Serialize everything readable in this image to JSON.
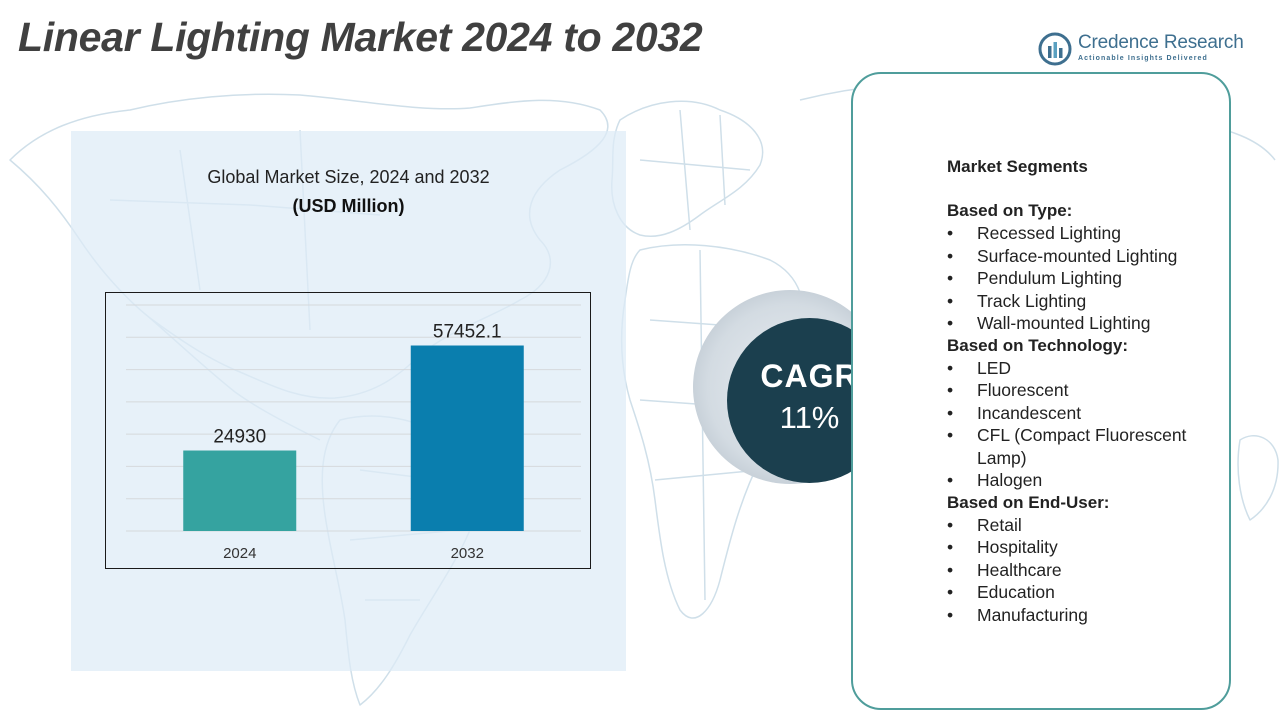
{
  "title": "Linear Lighting Market 2024 to 2032",
  "brand": {
    "name": "Credence Research",
    "tagline": "Actionable Insights Delivered"
  },
  "chart_panel": {
    "heading": "Global Market Size,  2024 and 2032",
    "subheading": "(USD Million)"
  },
  "chart_data": {
    "type": "bar",
    "title": "Global Market Size,  2024 and 2032",
    "ylabel": "(USD Million)",
    "xlabel": "",
    "categories": [
      "2024",
      "2032"
    ],
    "values": [
      24930,
      57452.1
    ],
    "value_labels": [
      "24930",
      "57452.1"
    ],
    "bar_colors": [
      "#35a3a0",
      "#0a7eae"
    ],
    "ylim": [
      0,
      70000
    ],
    "grid": true,
    "legend": "none"
  },
  "cagr": {
    "label": "CAGR",
    "value": "11%"
  },
  "segments": {
    "title": "Market Segments",
    "bullet": "•",
    "groups": [
      {
        "heading": "Based on Type:",
        "items": [
          "Recessed Lighting",
          "Surface-mounted Lighting",
          "Pendulum Lighting",
          "Track Lighting",
          "Wall-mounted Lighting"
        ]
      },
      {
        "heading": "Based on Technology:",
        "items": [
          "LED",
          "Fluorescent",
          "Incandescent",
          "CFL (Compact Fluorescent Lamp)",
          "Halogen"
        ]
      },
      {
        "heading": "Based on End-User:",
        "items": [
          "Retail",
          "Hospitality",
          "Healthcare",
          "Education",
          "Manufacturing"
        ]
      }
    ]
  },
  "colors": {
    "title_text": "#404040",
    "panel_background": "#deebf6",
    "cagr_circle": "#1b3f4e",
    "card_border": "#4f9d9b",
    "brand": "#3e6f8f",
    "map_lines": "#cfdfe9"
  }
}
